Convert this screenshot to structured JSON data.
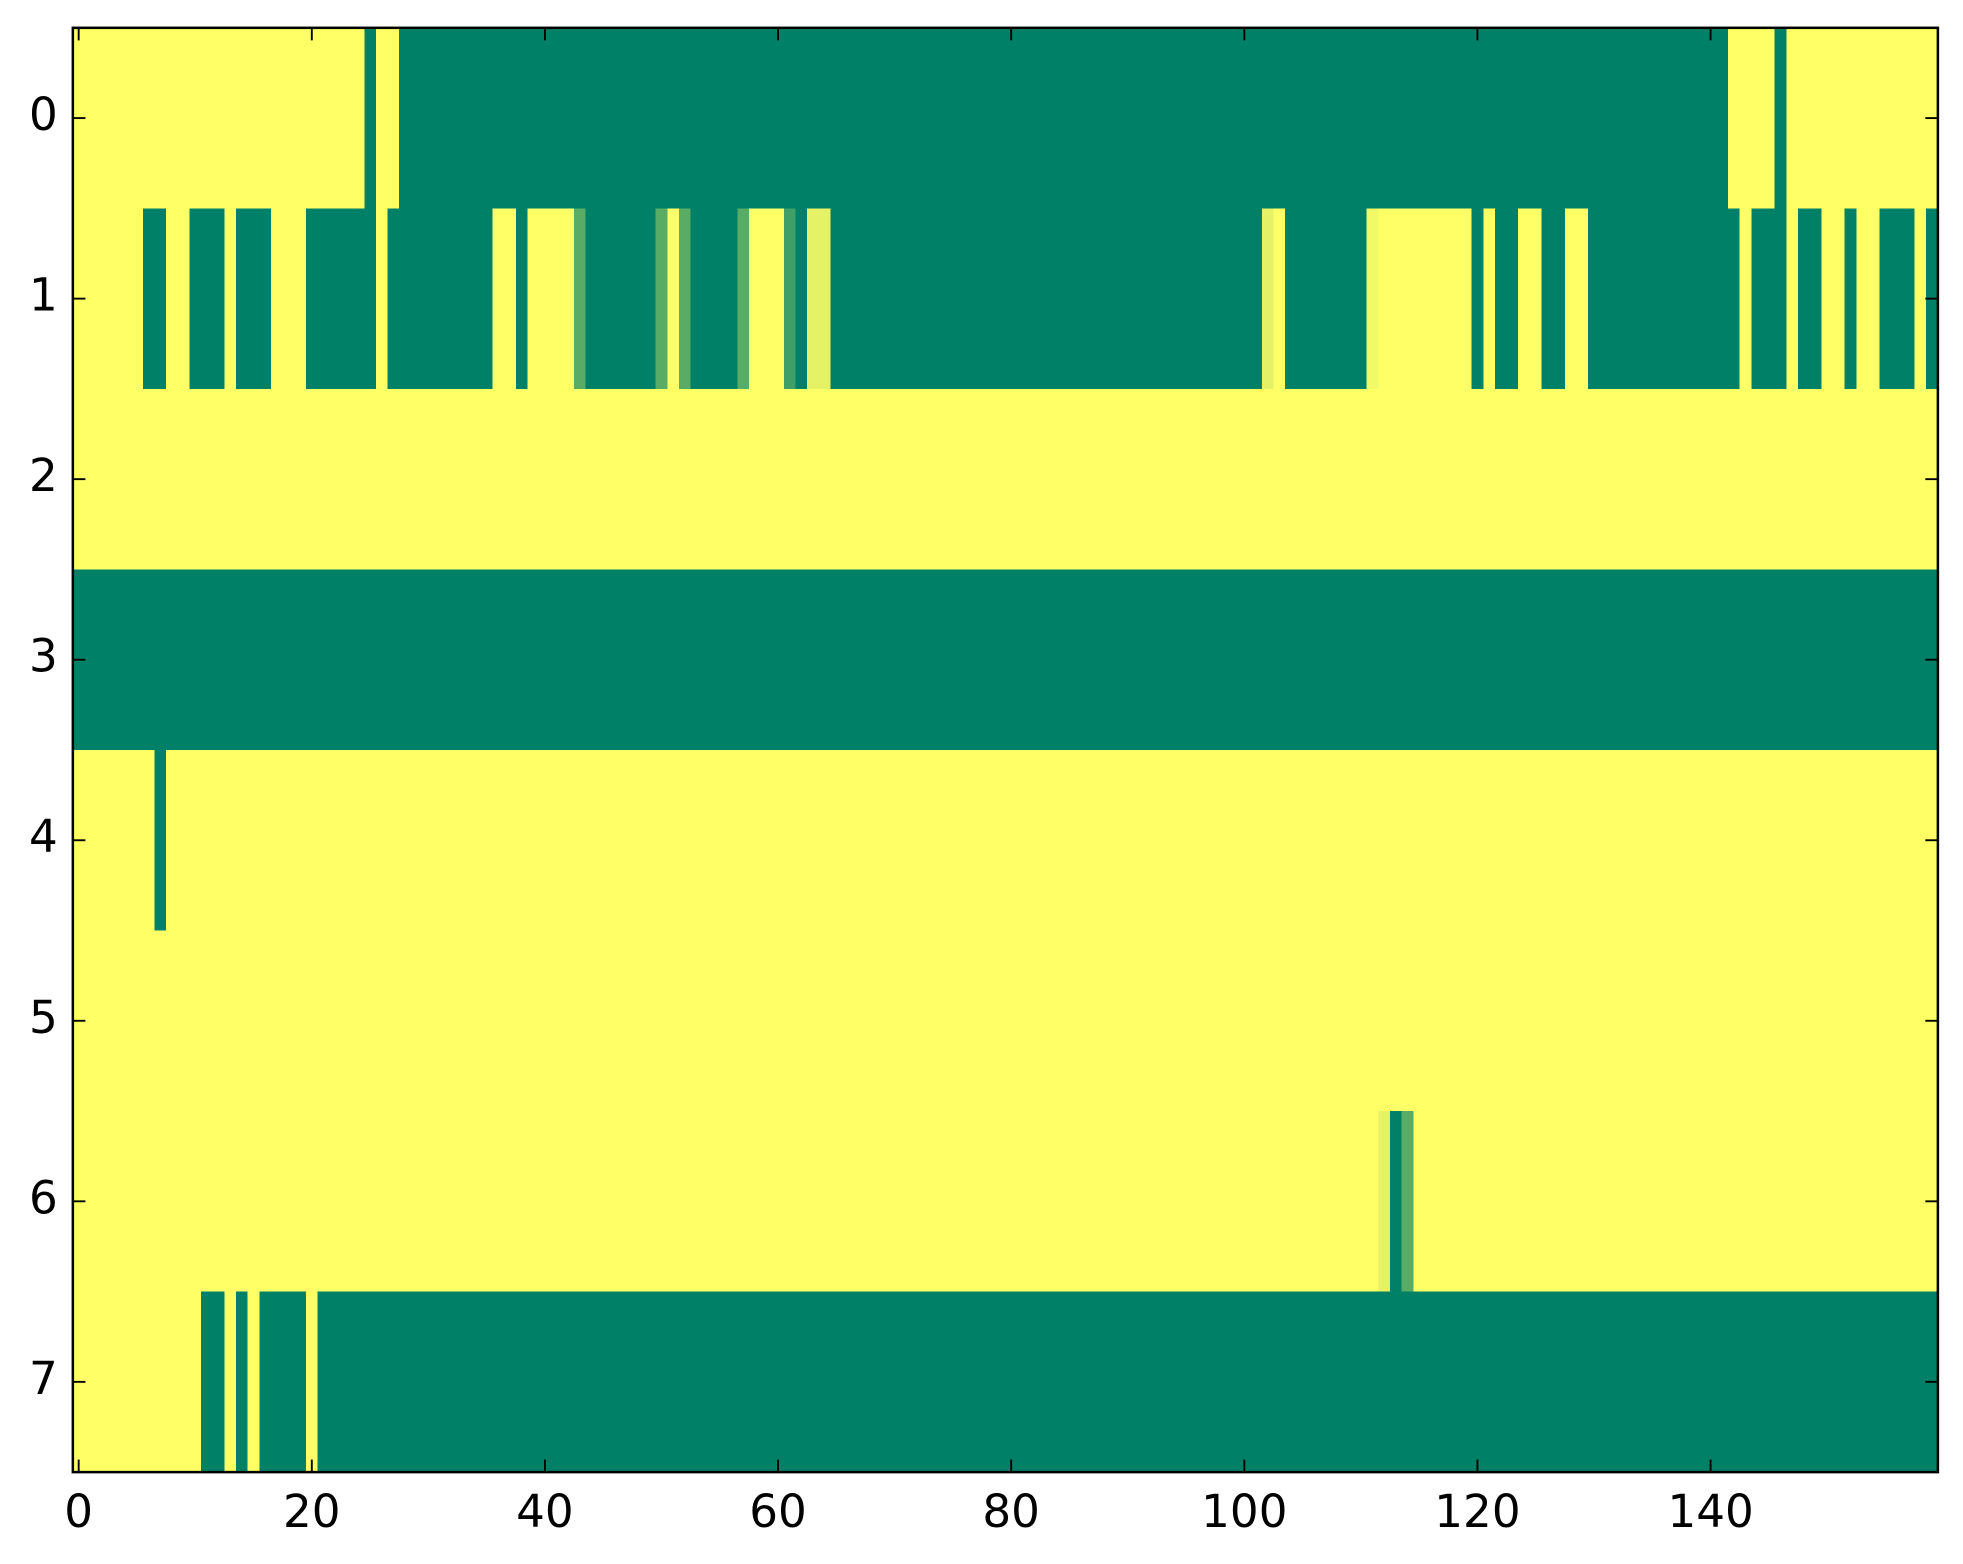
{
  "chart_data": {
    "type": "heatmap",
    "colormap": "summer",
    "z": [
      [
        1,
        1,
        1,
        1,
        1,
        1,
        1,
        1,
        1,
        1,
        1,
        1,
        1,
        1,
        1,
        1,
        1,
        1,
        1,
        1,
        1,
        1,
        1,
        1,
        1,
        0,
        1,
        1,
        0,
        0,
        0,
        0,
        0,
        0,
        0,
        0,
        0,
        0,
        0,
        0,
        0,
        0,
        0,
        0,
        0,
        0,
        0,
        0,
        0,
        0,
        0,
        0,
        0,
        0,
        0,
        0,
        0,
        0,
        0,
        0,
        0,
        0,
        0,
        0,
        0,
        0,
        0,
        0,
        0,
        0,
        0,
        0,
        0,
        0,
        0,
        0,
        0,
        0,
        0,
        0,
        0,
        0,
        0,
        0,
        0,
        0,
        0,
        0,
        0,
        0,
        0,
        0,
        0,
        0,
        0,
        0,
        0,
        0,
        0,
        0,
        0,
        0,
        0,
        0,
        0,
        0,
        0,
        0,
        0,
        0,
        0,
        0,
        0,
        0,
        0,
        0,
        0,
        0,
        0,
        0,
        0,
        0,
        0,
        0,
        0,
        0,
        0,
        0,
        0,
        0,
        0,
        0,
        0,
        0,
        0,
        0,
        0,
        0,
        0,
        0,
        0,
        0,
        1,
        1,
        1,
        1,
        0,
        1,
        1,
        1,
        1,
        1,
        1,
        1,
        1,
        1,
        1,
        1,
        1,
        1
      ],
      [
        1,
        1,
        1,
        1,
        1,
        1,
        0,
        0,
        1,
        1,
        0,
        0,
        0,
        1,
        0,
        0,
        0,
        1,
        1,
        1,
        0,
        0,
        0,
        0,
        0,
        0,
        1,
        0,
        0,
        0,
        0,
        0,
        0,
        0,
        0,
        0,
        1,
        1,
        0,
        1,
        1,
        1,
        1,
        0.35,
        0,
        0,
        0,
        0,
        0,
        0,
        0.35,
        1,
        0.35,
        0,
        0,
        0,
        0,
        0.35,
        1,
        1,
        1,
        0.25,
        0,
        0.9,
        0.9,
        0,
        0,
        0,
        0,
        0,
        0,
        0,
        0,
        0,
        0,
        0,
        0,
        0,
        0,
        0,
        0,
        0,
        0,
        0,
        0,
        0,
        0,
        0,
        0,
        0,
        0,
        0,
        0,
        0,
        0,
        0,
        0,
        0,
        0,
        0,
        0,
        0,
        0.9,
        1,
        0,
        0,
        0,
        0,
        0,
        0,
        0,
        0.95,
        1,
        1,
        1,
        1,
        1,
        1,
        1,
        1,
        0,
        1,
        0,
        0,
        1,
        1,
        0,
        0,
        1,
        1,
        0,
        0,
        0,
        0,
        0,
        0,
        0,
        0,
        0,
        0,
        0,
        0,
        0,
        1,
        0,
        0,
        0,
        1,
        0,
        0,
        1,
        1,
        0,
        1,
        1,
        0,
        0,
        0,
        1,
        0
      ],
      [
        1,
        1,
        1,
        1,
        1,
        1,
        1,
        1,
        1,
        1,
        1,
        1,
        1,
        1,
        1,
        1,
        1,
        1,
        1,
        1,
        1,
        1,
        1,
        1,
        1,
        1,
        1,
        1,
        1,
        1,
        1,
        1,
        1,
        1,
        1,
        1,
        1,
        1,
        1,
        1,
        1,
        1,
        1,
        1,
        1,
        1,
        1,
        1,
        1,
        1,
        1,
        1,
        1,
        1,
        1,
        1,
        1,
        1,
        1,
        1,
        1,
        1,
        1,
        1,
        1,
        1,
        1,
        1,
        1,
        1,
        1,
        1,
        1,
        1,
        1,
        1,
        1,
        1,
        1,
        1,
        1,
        1,
        1,
        1,
        1,
        1,
        1,
        1,
        1,
        1,
        1,
        1,
        1,
        1,
        1,
        1,
        1,
        1,
        1,
        1,
        1,
        1,
        1,
        1,
        1,
        1,
        1,
        1,
        1,
        1,
        1,
        1,
        1,
        1,
        1,
        1,
        1,
        1,
        1,
        1,
        1,
        1,
        1,
        1,
        1,
        1,
        1,
        1,
        1,
        1,
        1,
        1,
        1,
        1,
        1,
        1,
        1,
        1,
        1,
        1,
        1,
        1,
        1,
        1,
        1,
        1,
        1,
        1,
        1,
        1,
        1,
        1,
        1,
        1,
        1,
        1,
        1,
        1,
        1,
        1
      ],
      [
        0,
        0,
        0,
        0,
        0,
        0,
        0,
        0,
        0,
        0,
        0,
        0,
        0,
        0,
        0,
        0,
        0,
        0,
        0,
        0,
        0,
        0,
        0,
        0,
        0,
        0,
        0,
        0,
        0,
        0,
        0,
        0,
        0,
        0,
        0,
        0,
        0,
        0,
        0,
        0,
        0,
        0,
        0,
        0,
        0,
        0,
        0,
        0,
        0,
        0,
        0,
        0,
        0,
        0,
        0,
        0,
        0,
        0,
        0,
        0,
        0,
        0,
        0,
        0,
        0,
        0,
        0,
        0,
        0,
        0,
        0,
        0,
        0,
        0,
        0,
        0,
        0,
        0,
        0,
        0,
        0,
        0,
        0,
        0,
        0,
        0,
        0,
        0,
        0,
        0,
        0,
        0,
        0,
        0,
        0,
        0,
        0,
        0,
        0,
        0,
        0,
        0,
        0,
        0,
        0,
        0,
        0,
        0,
        0,
        0,
        0,
        0,
        0,
        0,
        0,
        0,
        0,
        0,
        0,
        0,
        0,
        0,
        0,
        0,
        0,
        0,
        0,
        0,
        0,
        0,
        0,
        0,
        0,
        0,
        0,
        0,
        0,
        0,
        0,
        0,
        0,
        0,
        0,
        0,
        0,
        0,
        0,
        0,
        0,
        0,
        0,
        0,
        0,
        0,
        0,
        0,
        0,
        0,
        0,
        0
      ],
      [
        1,
        1,
        1,
        1,
        1,
        1,
        1,
        0,
        1,
        1,
        1,
        1,
        1,
        1,
        1,
        1,
        1,
        1,
        1,
        1,
        1,
        1,
        1,
        1,
        1,
        1,
        1,
        1,
        1,
        1,
        1,
        1,
        1,
        1,
        1,
        1,
        1,
        1,
        1,
        1,
        1,
        1,
        1,
        1,
        1,
        1,
        1,
        1,
        1,
        1,
        1,
        1,
        1,
        1,
        1,
        1,
        1,
        1,
        1,
        1,
        1,
        1,
        1,
        1,
        1,
        1,
        1,
        1,
        1,
        1,
        1,
        1,
        1,
        1,
        1,
        1,
        1,
        1,
        1,
        1,
        1,
        1,
        1,
        1,
        1,
        1,
        1,
        1,
        1,
        1,
        1,
        1,
        1,
        1,
        1,
        1,
        1,
        1,
        1,
        1,
        1,
        1,
        1,
        1,
        1,
        1,
        1,
        1,
        1,
        1,
        1,
        1,
        1,
        1,
        1,
        1,
        1,
        1,
        1,
        1,
        1,
        1,
        1,
        1,
        1,
        1,
        1,
        1,
        1,
        1,
        1,
        1,
        1,
        1,
        1,
        1,
        1,
        1,
        1,
        1,
        1,
        1,
        1,
        1,
        1,
        1,
        1,
        1,
        1,
        1,
        1,
        1,
        1,
        1,
        1,
        1,
        1,
        1,
        1,
        1
      ],
      [
        1,
        1,
        1,
        1,
        1,
        1,
        1,
        1,
        1,
        1,
        1,
        1,
        1,
        1,
        1,
        1,
        1,
        1,
        1,
        1,
        1,
        1,
        1,
        1,
        1,
        1,
        1,
        1,
        1,
        1,
        1,
        1,
        1,
        1,
        1,
        1,
        1,
        1,
        1,
        1,
        1,
        1,
        1,
        1,
        1,
        1,
        1,
        1,
        1,
        1,
        1,
        1,
        1,
        1,
        1,
        1,
        1,
        1,
        1,
        1,
        1,
        1,
        1,
        1,
        1,
        1,
        1,
        1,
        1,
        1,
        1,
        1,
        1,
        1,
        1,
        1,
        1,
        1,
        1,
        1,
        1,
        1,
        1,
        1,
        1,
        1,
        1,
        1,
        1,
        1,
        1,
        1,
        1,
        1,
        1,
        1,
        1,
        1,
        1,
        1,
        1,
        1,
        1,
        1,
        1,
        1,
        1,
        1,
        1,
        1,
        1,
        1,
        1,
        1,
        1,
        1,
        1,
        1,
        1,
        1,
        1,
        1,
        1,
        1,
        1,
        1,
        1,
        1,
        1,
        1,
        1,
        1,
        1,
        1,
        1,
        1,
        1,
        1,
        1,
        1,
        1,
        1,
        1,
        1,
        1,
        1,
        1,
        1,
        1,
        1,
        1,
        1,
        1,
        1,
        1,
        1,
        1,
        1,
        1,
        1
      ],
      [
        1,
        1,
        1,
        1,
        1,
        1,
        1,
        1,
        1,
        1,
        1,
        1,
        1,
        1,
        1,
        1,
        1,
        1,
        1,
        1,
        1,
        1,
        1,
        1,
        1,
        1,
        1,
        1,
        1,
        1,
        1,
        1,
        1,
        1,
        1,
        1,
        1,
        1,
        1,
        1,
        1,
        1,
        1,
        1,
        1,
        1,
        1,
        1,
        1,
        1,
        1,
        1,
        1,
        1,
        1,
        1,
        1,
        1,
        1,
        1,
        1,
        1,
        1,
        1,
        1,
        1,
        1,
        1,
        1,
        1,
        1,
        1,
        1,
        1,
        1,
        1,
        1,
        1,
        1,
        1,
        1,
        1,
        1,
        1,
        1,
        1,
        1,
        1,
        1,
        1,
        1,
        1,
        1,
        1,
        1,
        1,
        1,
        1,
        1,
        1,
        1,
        1,
        1,
        1,
        1,
        1,
        1,
        1,
        1,
        1,
        1,
        1,
        0.9,
        0,
        0.35,
        1,
        1,
        1,
        1,
        1,
        1,
        1,
        1,
        1,
        1,
        1,
        1,
        1,
        1,
        1,
        1,
        1,
        1,
        1,
        1,
        1,
        1,
        1,
        1,
        1,
        1,
        1,
        1,
        1,
        1,
        1,
        1,
        1,
        1,
        1,
        1,
        1,
        1,
        1,
        1,
        1,
        1,
        1,
        1,
        1
      ],
      [
        1,
        1,
        1,
        1,
        1,
        1,
        1,
        1,
        1,
        1,
        1,
        0,
        0,
        1,
        0,
        1,
        0,
        0,
        0,
        0,
        1,
        0,
        0,
        0,
        0,
        0,
        0,
        0,
        0,
        0,
        0,
        0,
        0,
        0,
        0,
        0,
        0,
        0,
        0,
        0,
        0,
        0,
        0,
        0,
        0,
        0,
        0,
        0,
        0,
        0,
        0,
        0,
        0,
        0,
        0,
        0,
        0,
        0,
        0,
        0,
        0,
        0,
        0,
        0,
        0,
        0,
        0,
        0,
        0,
        0,
        0,
        0,
        0,
        0,
        0,
        0,
        0,
        0,
        0,
        0,
        0,
        0,
        0,
        0,
        0,
        0,
        0,
        0,
        0,
        0,
        0,
        0,
        0,
        0,
        0,
        0,
        0,
        0,
        0,
        0,
        0,
        0,
        0,
        0,
        0,
        0,
        0,
        0,
        0,
        0,
        0,
        0,
        0,
        0,
        0,
        0,
        0,
        0,
        0,
        0,
        0,
        0,
        0,
        0,
        0,
        0,
        0,
        0,
        0,
        0,
        0,
        0,
        0,
        0,
        0,
        0,
        0,
        0,
        0,
        0,
        0,
        0,
        0,
        0,
        0,
        0,
        0,
        0,
        0,
        0,
        0,
        0,
        0,
        0,
        0,
        0,
        0,
        0,
        0,
        0
      ]
    ],
    "xlim": [
      -0.5,
      159.5
    ],
    "ylim": [
      7.5,
      -0.5
    ],
    "xticks": [
      0,
      20,
      40,
      60,
      80,
      100,
      120,
      140
    ],
    "yticks": [
      0,
      1,
      2,
      3,
      4,
      5,
      6,
      7
    ]
  }
}
